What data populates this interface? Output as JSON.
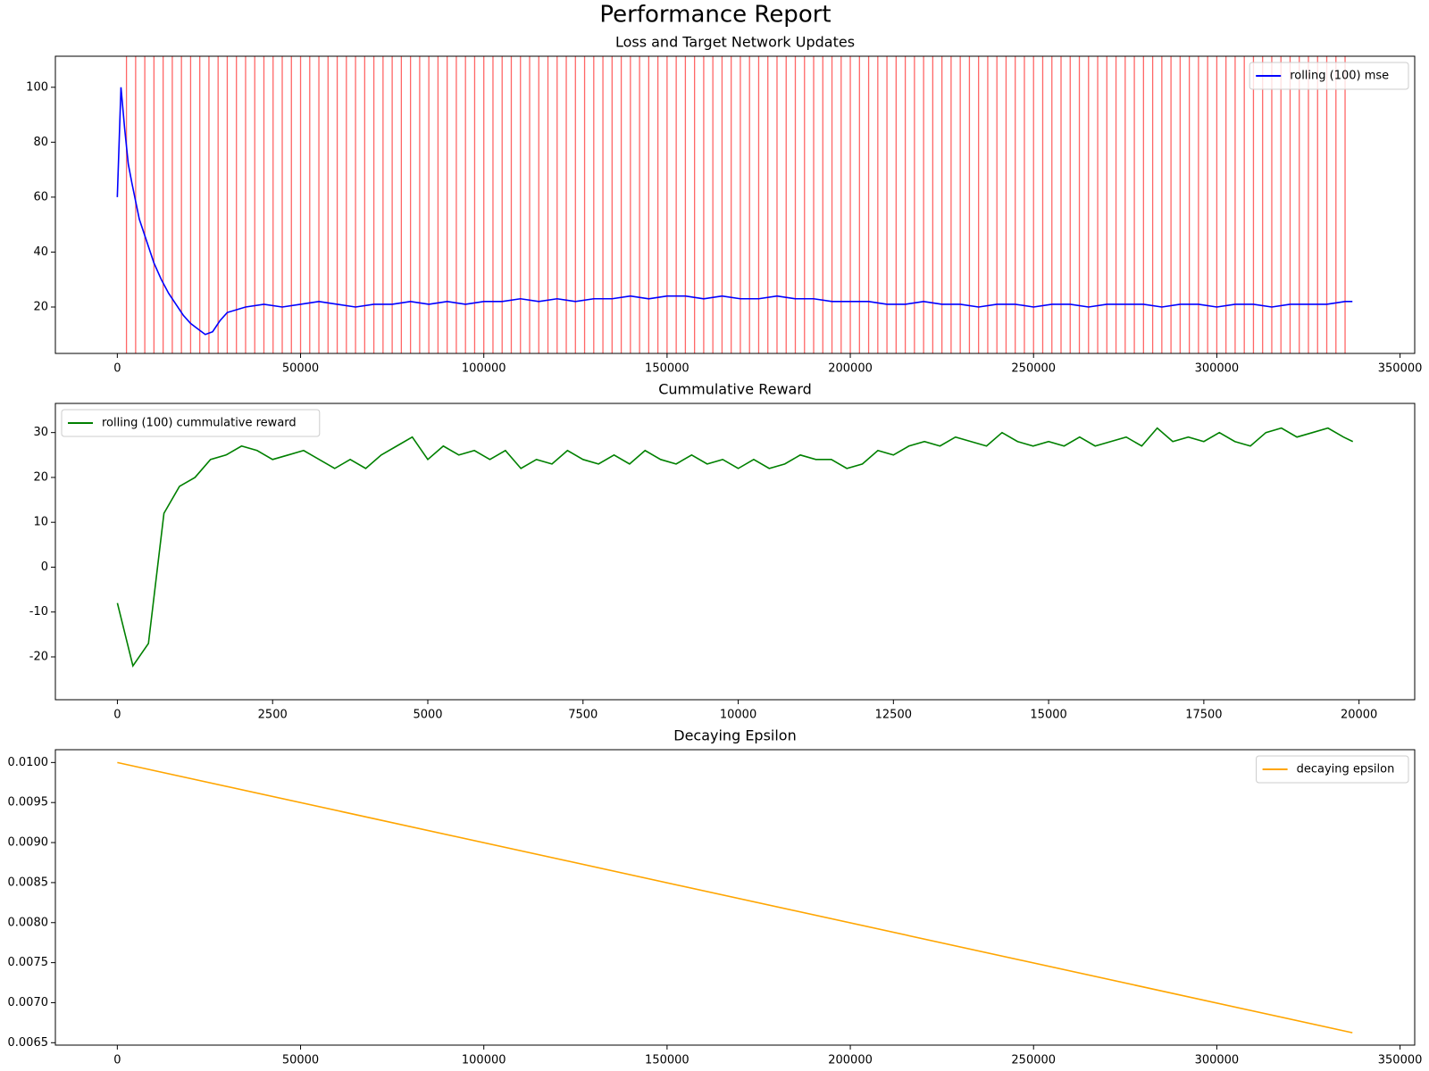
{
  "title": "Performance Report",
  "chart_data": [
    {
      "type": "line",
      "title": "Loss and Target Network Updates",
      "x": [
        0,
        1000,
        2000,
        3000,
        4000,
        6000,
        8000,
        10000,
        12000,
        14000,
        16000,
        18000,
        20000,
        22000,
        24000,
        26000,
        28000,
        30000,
        35000,
        40000,
        45000,
        50000,
        55000,
        60000,
        65000,
        70000,
        75000,
        80000,
        85000,
        90000,
        95000,
        100000,
        105000,
        110000,
        115000,
        120000,
        125000,
        130000,
        135000,
        140000,
        145000,
        150000,
        155000,
        160000,
        165000,
        170000,
        175000,
        180000,
        185000,
        190000,
        195000,
        200000,
        205000,
        210000,
        215000,
        220000,
        225000,
        230000,
        235000,
        240000,
        245000,
        250000,
        255000,
        260000,
        265000,
        270000,
        275000,
        280000,
        285000,
        290000,
        295000,
        300000,
        305000,
        310000,
        315000,
        320000,
        325000,
        330000,
        335000,
        337000
      ],
      "series": [
        {
          "name": "rolling (100) mse",
          "color": "#0000ff",
          "values": [
            60,
            100,
            85,
            72,
            65,
            52,
            44,
            36,
            30,
            25,
            21,
            17,
            14,
            12,
            10,
            11,
            15,
            18,
            20,
            21,
            20,
            21,
            22,
            21,
            20,
            21,
            21,
            22,
            21,
            22,
            21,
            22,
            22,
            23,
            22,
            23,
            22,
            23,
            23,
            24,
            23,
            24,
            24,
            23,
            24,
            23,
            23,
            24,
            23,
            23,
            22,
            22,
            22,
            21,
            21,
            22,
            21,
            21,
            20,
            21,
            21,
            20,
            21,
            21,
            20,
            21,
            21,
            21,
            20,
            21,
            21,
            20,
            21,
            21,
            20,
            21,
            21,
            21,
            22,
            22
          ]
        }
      ],
      "update_color": "#ff0000",
      "update_x": [
        2500,
        5000,
        7500,
        10000,
        12500,
        15000,
        17500,
        20000,
        22500,
        25000,
        27500,
        30000,
        32500,
        35000,
        37500,
        40000,
        42500,
        45000,
        47500,
        50000,
        52500,
        55000,
        57500,
        60000,
        62500,
        65000,
        67500,
        70000,
        72500,
        75000,
        77500,
        80000,
        82500,
        85000,
        87500,
        90000,
        92500,
        95000,
        97500,
        100000,
        102500,
        105000,
        107500,
        110000,
        112500,
        115000,
        117500,
        120000,
        122500,
        125000,
        127500,
        130000,
        132500,
        135000,
        137500,
        140000,
        142500,
        145000,
        147500,
        150000,
        152500,
        155000,
        157500,
        160000,
        162500,
        165000,
        167500,
        170000,
        172500,
        175000,
        177500,
        180000,
        182500,
        185000,
        187500,
        190000,
        192500,
        195000,
        197500,
        200000,
        202500,
        205000,
        207500,
        210000,
        212500,
        215000,
        217500,
        220000,
        222500,
        225000,
        227500,
        230000,
        232500,
        235000,
        237500,
        240000,
        242500,
        245000,
        247500,
        250000,
        252500,
        255000,
        257500,
        260000,
        262500,
        265000,
        267500,
        270000,
        272500,
        275000,
        277500,
        280000,
        282500,
        285000,
        287500,
        290000,
        292500,
        295000,
        297500,
        300000,
        302500,
        305000,
        307500,
        310000,
        312500,
        315000,
        317500,
        320000,
        322500,
        325000,
        327500,
        330000,
        332500,
        335000
      ],
      "xlim": [
        -16900,
        354000
      ],
      "xticks": [
        0,
        50000,
        100000,
        150000,
        200000,
        250000,
        300000,
        350000
      ],
      "ylim": [
        3.1,
        111.3
      ],
      "yticks": [
        20,
        40,
        60,
        80,
        100
      ],
      "legend": "upper right"
    },
    {
      "type": "line",
      "title": "Cummulative Reward",
      "x": [
        0,
        250,
        500,
        750,
        1000,
        1250,
        1500,
        1750,
        2000,
        2250,
        2500,
        2750,
        3000,
        3250,
        3500,
        3750,
        4000,
        4250,
        4500,
        4750,
        5000,
        5250,
        5500,
        5750,
        6000,
        6250,
        6500,
        6750,
        7000,
        7250,
        7500,
        7750,
        8000,
        8250,
        8500,
        8750,
        9000,
        9250,
        9500,
        9750,
        10000,
        10250,
        10500,
        10750,
        11000,
        11250,
        11500,
        11750,
        12000,
        12250,
        12500,
        12750,
        13000,
        13250,
        13500,
        13750,
        14000,
        14250,
        14500,
        14750,
        15000,
        15250,
        15500,
        15750,
        16000,
        16250,
        16500,
        16750,
        17000,
        17250,
        17500,
        17750,
        18000,
        18250,
        18500,
        18750,
        19000,
        19250,
        19500,
        19750,
        19900
      ],
      "series": [
        {
          "name": "rolling (100) cummulative reward",
          "color": "#008000",
          "values": [
            -8,
            -22,
            -17,
            12,
            18,
            20,
            24,
            25,
            27,
            26,
            24,
            25,
            26,
            24,
            22,
            24,
            22,
            25,
            27,
            29,
            24,
            27,
            25,
            26,
            24,
            26,
            22,
            24,
            23,
            26,
            24,
            23,
            25,
            23,
            26,
            24,
            23,
            25,
            23,
            24,
            22,
            24,
            22,
            23,
            25,
            24,
            24,
            22,
            23,
            26,
            25,
            27,
            28,
            27,
            29,
            28,
            27,
            30,
            28,
            27,
            28,
            27,
            29,
            27,
            28,
            29,
            27,
            31,
            28,
            29,
            28,
            30,
            28,
            27,
            30,
            31,
            29,
            30,
            31,
            29,
            28
          ]
        }
      ],
      "xlim": [
        -999,
        20897
      ],
      "xticks": [
        0,
        2500,
        5000,
        7500,
        10000,
        12500,
        15000,
        17500,
        20000
      ],
      "ylim": [
        -29.55,
        36.5
      ],
      "yticks": [
        -20,
        -10,
        0,
        10,
        20,
        30
      ],
      "legend": "upper left"
    },
    {
      "type": "line",
      "title": "Decaying Epsilon",
      "x": [
        0,
        337000
      ],
      "series": [
        {
          "name": "decaying epsilon",
          "color": "#ffa500",
          "values": [
            0.01,
            0.006625
          ]
        }
      ],
      "xlim": [
        -16900,
        354000
      ],
      "xticks": [
        0,
        50000,
        100000,
        150000,
        200000,
        250000,
        300000,
        350000
      ],
      "ylim": [
        0.00647,
        0.01016
      ],
      "yticks": [
        0.0065,
        {
          "value": 0.007,
          "label": "0.0070"
        },
        0.0075,
        {
          "value": 0.008,
          "label": "0.0080"
        },
        0.0085,
        {
          "value": 0.009,
          "label": "0.0090"
        },
        0.0095,
        {
          "value": 0.01,
          "label": "0.0100"
        }
      ],
      "legend": "upper right"
    }
  ]
}
